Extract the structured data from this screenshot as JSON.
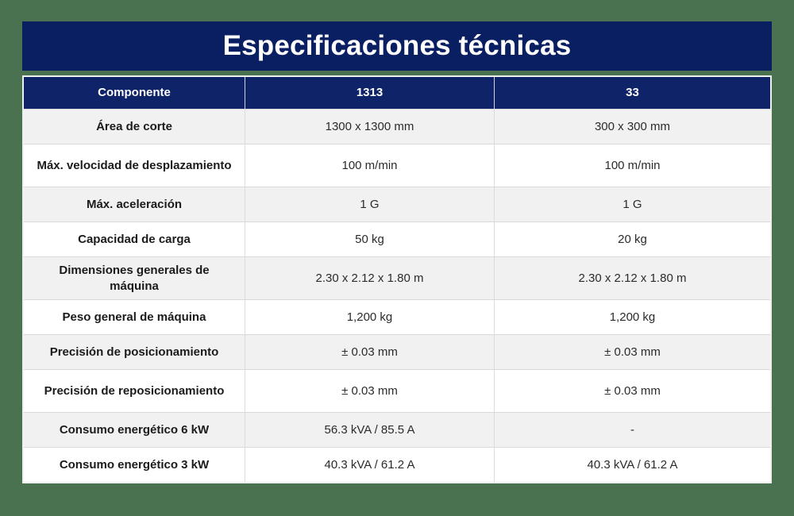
{
  "title": "Especificaciones técnicas",
  "colors": {
    "background_green": "#4a7150",
    "title_bar_navy": "#0a1f62",
    "header_row_navy": "#0f2468",
    "row_stripe_gray": "#f1f1f1",
    "row_white": "#ffffff",
    "label_text": "#1b1b1b",
    "value_text": "#2b2b2b",
    "header_text": "#ffffff"
  },
  "chart_data": {
    "type": "table",
    "title": "Especificaciones técnicas",
    "columns": [
      "Componente",
      "1313",
      "33"
    ],
    "rows": [
      [
        "Área de corte",
        "1300 x 1300 mm",
        "300 x 300 mm"
      ],
      [
        "Máx. velocidad de desplazamiento",
        "100 m/min",
        "100 m/min"
      ],
      [
        "Máx. aceleración",
        "1 G",
        "1 G"
      ],
      [
        "Capacidad de carga",
        "50 kg",
        "20 kg"
      ],
      [
        "Dimensiones generales de máquina",
        "2.30 x 2.12 x 1.80 m",
        "2.30 x 2.12 x 1.80 m"
      ],
      [
        "Peso general de máquina",
        "1,200 kg",
        "1,200 kg"
      ],
      [
        "Precisión de posicionamiento",
        "± 0.03 mm",
        "± 0.03 mm"
      ],
      [
        "Precisión de reposicionamiento",
        "± 0.03 mm",
        "± 0.03 mm"
      ],
      [
        "Consumo energético 6 kW",
        "56.3 kVA / 85.5 A",
        "-"
      ],
      [
        "Consumo energético 3 kW",
        "40.3 kVA / 61.2 A",
        "40.3 kVA / 61.2 A"
      ]
    ]
  }
}
